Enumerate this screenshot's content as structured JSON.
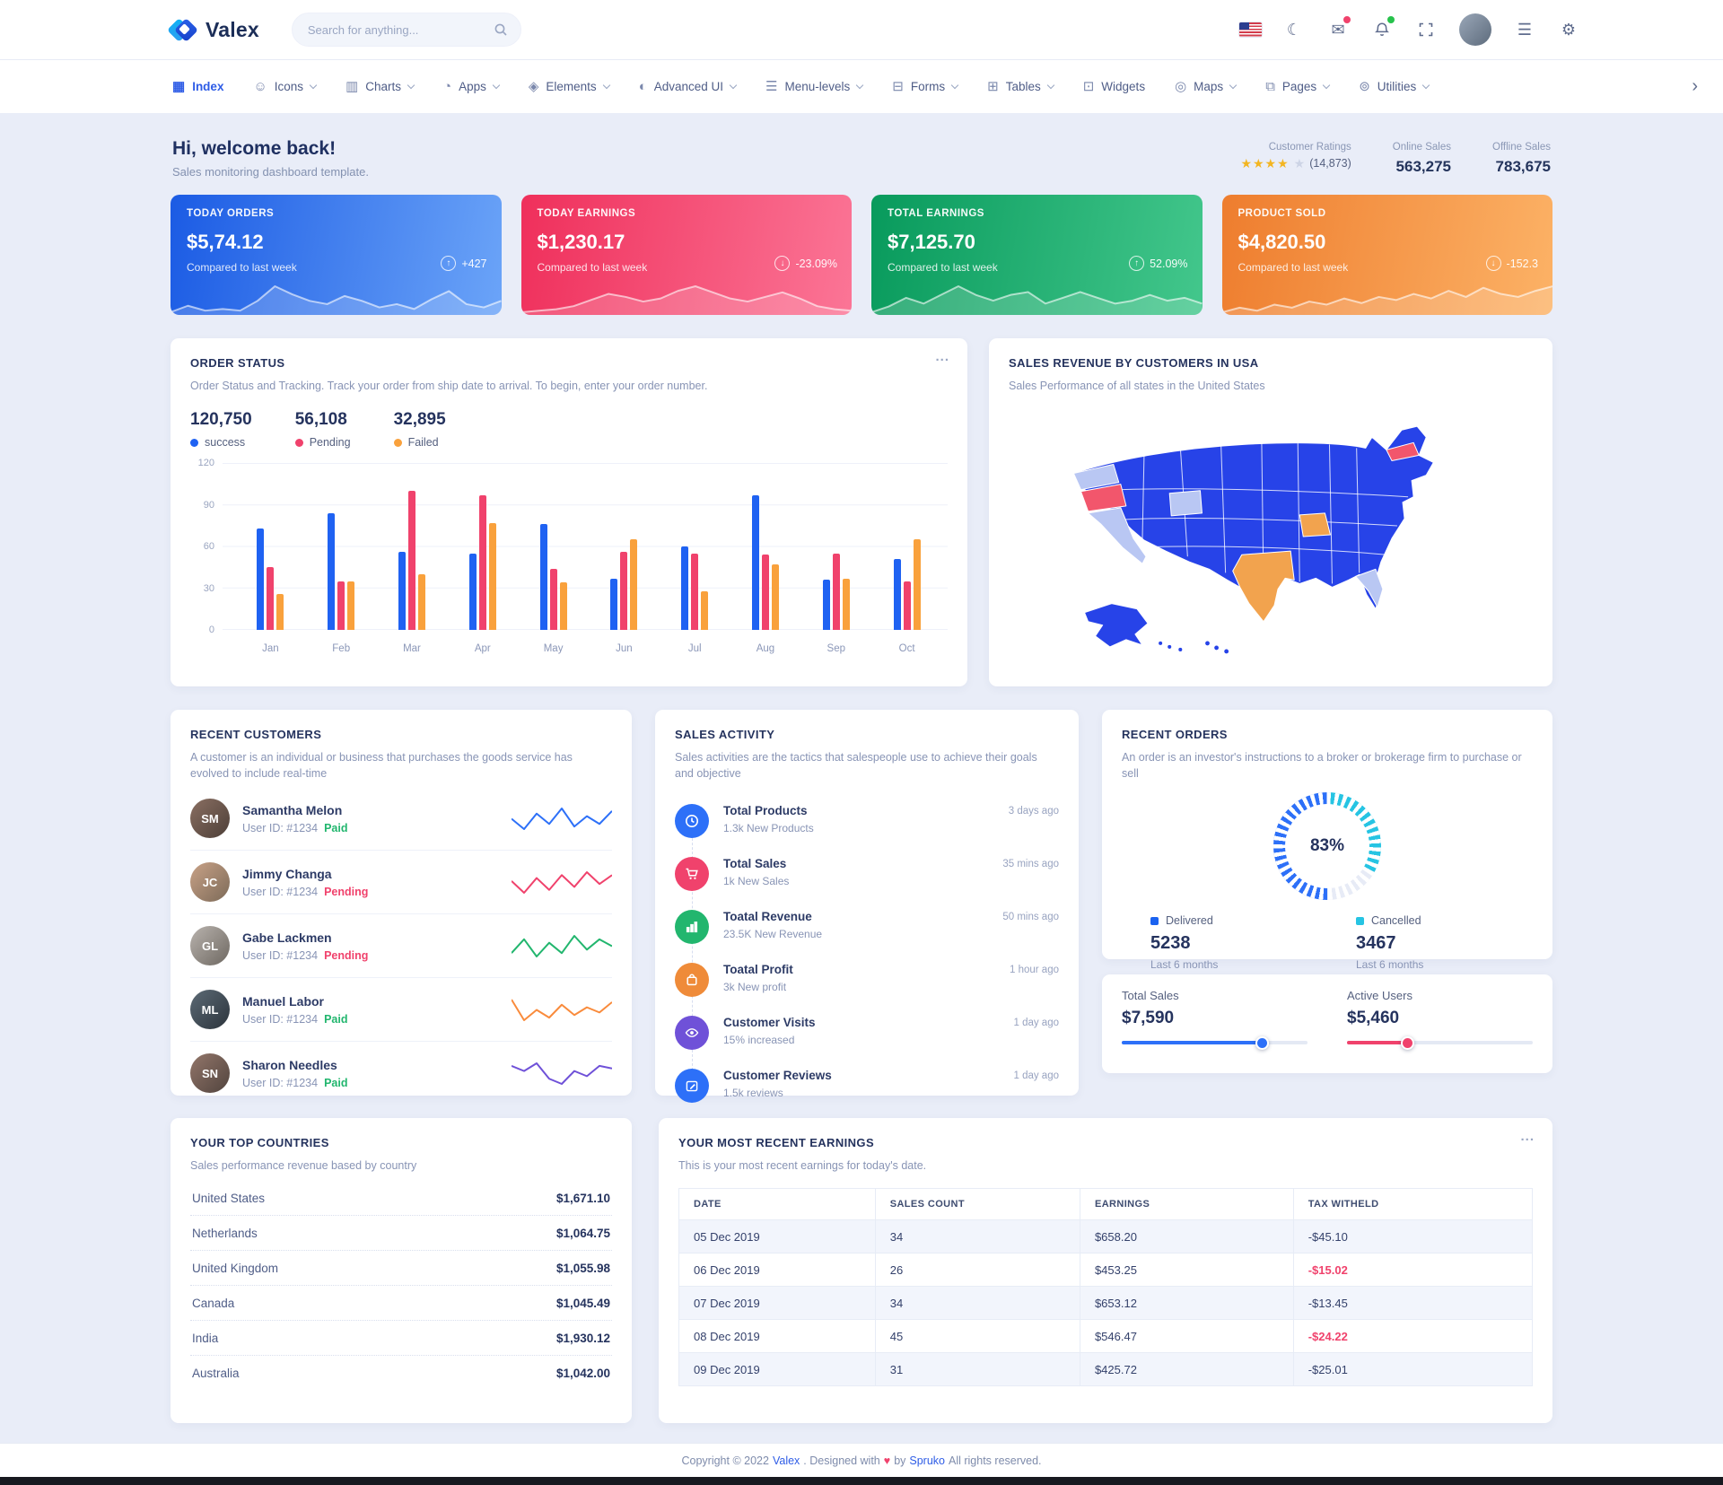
{
  "palette": {
    "primary": "#2e5ce6",
    "green": "#22b66e",
    "pink": "#f0426c",
    "gold": "#f3b521",
    "teal": "#26c4e3"
  },
  "topbar": {
    "brand": "Valex",
    "search_placeholder": "Search for anything..."
  },
  "nav": {
    "items": [
      {
        "label": "Index",
        "glyph": "▦"
      },
      {
        "label": "Icons",
        "glyph": "☺"
      },
      {
        "label": "Charts",
        "glyph": "▥"
      },
      {
        "label": "Apps",
        "glyph": "◔"
      },
      {
        "label": "Elements",
        "glyph": "◈"
      },
      {
        "label": "Advanced UI",
        "glyph": "◐"
      },
      {
        "label": "Menu-levels",
        "glyph": "☰"
      },
      {
        "label": "Forms",
        "glyph": "⊟"
      },
      {
        "label": "Tables",
        "glyph": "⊞"
      },
      {
        "label": "Widgets",
        "glyph": "⊡"
      },
      {
        "label": "Maps",
        "glyph": "◎"
      },
      {
        "label": "Pages",
        "glyph": "⧉"
      },
      {
        "label": "Utilities",
        "glyph": "⊚"
      }
    ],
    "more": "›",
    "glyphs": {
      "moon": "☾",
      "mail": "✉",
      "menu": "☰",
      "gear": "⚙"
    }
  },
  "welcome": {
    "title": "Hi, welcome back!",
    "subtitle": "Sales monitoring dashboard template.",
    "ratings": {
      "label": "Customer Ratings",
      "stars_full": "★★★★",
      "star_empty": "★",
      "count": "(14,873)"
    },
    "online": {
      "label": "Online Sales",
      "value": "563,275"
    },
    "offline": {
      "label": "Offline Sales",
      "value": "783,675"
    }
  },
  "stat_cards": [
    {
      "title": "TODAY ORDERS",
      "value": "$5,74.12",
      "note": "Compared to last week",
      "delta": "+427",
      "arrow": "↑",
      "trend": [
        20,
        28,
        22,
        24,
        22,
        34,
        52,
        42,
        34,
        30,
        40,
        34,
        26,
        30,
        24,
        36,
        46,
        30,
        26,
        34
      ]
    },
    {
      "title": "TODAY EARNINGS",
      "value": "$1,230.17",
      "note": "Compared to last week",
      "delta": "-23.09%",
      "arrow": "↓",
      "trend": [
        6,
        8,
        10,
        14,
        22,
        30,
        26,
        20,
        24,
        34,
        40,
        32,
        24,
        20,
        26,
        32,
        24,
        14,
        10,
        8
      ]
    },
    {
      "title": "TOTAL EARNINGS",
      "value": "$7,125.70",
      "note": "Compared to last week",
      "delta": "52.09%",
      "arrow": "↑",
      "trend": [
        16,
        20,
        26,
        22,
        28,
        34,
        28,
        24,
        28,
        30,
        22,
        26,
        30,
        26,
        22,
        24,
        28,
        24,
        26,
        22
      ]
    },
    {
      "title": "PRODUCT SOLD",
      "value": "$4,820.50",
      "note": "Compared to last week",
      "delta": "-152.3",
      "arrow": "↓",
      "trend": [
        10,
        16,
        12,
        20,
        16,
        24,
        20,
        28,
        22,
        30,
        26,
        34,
        28,
        38,
        30,
        42,
        34,
        30,
        38,
        44
      ]
    }
  ],
  "order_status": {
    "title": "ORDER STATUS",
    "menu": "...",
    "desc": "Order Status and Tracking. Track your order from ship date to arrival. To begin, enter your order number.",
    "legend": [
      {
        "value": "120,750",
        "label": "success"
      },
      {
        "value": "56,108",
        "label": "Pending"
      },
      {
        "value": "32,895",
        "label": "Failed"
      }
    ],
    "chart": {
      "type": "bar",
      "categories": [
        "Jan",
        "Feb",
        "Mar",
        "Apr",
        "May",
        "Jun",
        "Jul",
        "Aug",
        "Sep",
        "Oct"
      ],
      "series": [
        {
          "name": "success",
          "color": "#1f62f2",
          "values": [
            73,
            84,
            56,
            55,
            76,
            37,
            60,
            97,
            36,
            51
          ]
        },
        {
          "name": "Pending",
          "color": "#f0426c",
          "values": [
            45,
            35,
            100,
            97,
            44,
            56,
            55,
            54,
            55,
            35
          ]
        },
        {
          "name": "Failed",
          "color": "#f9a13c",
          "values": [
            26,
            35,
            40,
            77,
            34,
            65,
            28,
            47,
            37,
            65
          ]
        }
      ],
      "ylim": [
        0,
        120
      ],
      "yticks": [
        "120",
        "90",
        "60",
        "30",
        "0"
      ]
    }
  },
  "usa_map": {
    "title": "SALES REVENUE BY CUSTOMERS IN USA",
    "desc": "Sales Performance of all states in the United States",
    "colors": {
      "base": "#2743e8",
      "light": "#b9c7f3",
      "red": "#f2566c",
      "orange": "#f2a34e"
    }
  },
  "recent_customers": {
    "title": "RECENT CUSTOMERS",
    "desc": "A customer is an individual or business that purchases the goods service has evolved to include real-time",
    "customers": [
      {
        "name": "Samantha Melon",
        "id": "User ID: #1234",
        "status": "Paid",
        "spark_color": "#2d70f8",
        "trend": [
          12,
          8,
          14,
          10,
          16,
          9,
          13,
          10,
          15
        ]
      },
      {
        "name": "Jimmy Changa",
        "id": "User ID: #1234",
        "status": "Pending",
        "spark_color": "#f0426c",
        "trend": [
          14,
          10,
          15,
          11,
          16,
          12,
          17,
          13,
          16
        ]
      },
      {
        "name": "Gabe Lackmen",
        "id": "User ID: #1234",
        "status": "Pending",
        "spark_color": "#22b66e",
        "trend": [
          10,
          14,
          9,
          13,
          10,
          15,
          11,
          14,
          12
        ]
      },
      {
        "name": "Manuel Labor",
        "id": "User ID: #1234",
        "status": "Paid",
        "spark_color": "#f98b3c",
        "trend": [
          16,
          8,
          12,
          9,
          14,
          10,
          13,
          11,
          15
        ]
      },
      {
        "name": "Sharon Needles",
        "id": "User ID: #1234",
        "status": "Paid",
        "spark_color": "#6f51d8",
        "trend": [
          14,
          12,
          15,
          9,
          7,
          12,
          10,
          14,
          13
        ]
      }
    ]
  },
  "sales_activity": {
    "title": "SALES ACTIVITY",
    "desc": "Sales activities are the tactics that salespeople use to achieve their goals and objective",
    "items": [
      {
        "title": "Total Products",
        "sub": "1.3k New Products",
        "time": "3 days ago",
        "color": "#2d70f8"
      },
      {
        "title": "Total Sales",
        "sub": "1k New Sales",
        "time": "35 mins ago",
        "color": "#f0426c"
      },
      {
        "title": "Toatal Revenue",
        "sub": "23.5K New Revenue",
        "time": "50 mins ago",
        "color": "#22b66e"
      },
      {
        "title": "Toatal Profit",
        "sub": "3k New profit",
        "time": "1 hour ago",
        "color": "#ef8b39"
      },
      {
        "title": "Customer Visits",
        "sub": "15% increased",
        "time": "1 day ago",
        "color": "#6f51d8"
      },
      {
        "title": "Customer Reviews",
        "sub": "1.5k reviews",
        "time": "1 day ago",
        "color": "#2d70f8"
      }
    ]
  },
  "recent_orders": {
    "title": "RECENT ORDERS",
    "desc": "An order is an investor's instructions to a broker or brokerage firm to purchase or sell",
    "gauge": {
      "pct_label": "83%",
      "start_deg": 180,
      "segments": [
        {
          "color": "#2d70f8",
          "pct": 50
        },
        {
          "color": "#26c4e3",
          "pct": 33
        },
        {
          "color": "#e7ebf6",
          "pct": 17
        }
      ]
    },
    "legend": [
      {
        "label": "Delivered",
        "value": "5238",
        "period": "Last 6 months",
        "color": "#1b62f0"
      },
      {
        "label": "Cancelled",
        "value": "3467",
        "period": "Last 6 months",
        "color": "#26c4e3"
      }
    ]
  },
  "sales_overview": {
    "items": [
      {
        "label": "Total Sales",
        "value": "$7,590",
        "pct": 76,
        "color": "#2d70f8"
      },
      {
        "label": "Active Users",
        "value": "$5,460",
        "pct": 33,
        "color": "#f0426c"
      }
    ]
  },
  "top_countries": {
    "title": "YOUR TOP COUNTRIES",
    "desc": "Sales performance revenue based by country",
    "rows": [
      {
        "name": "United States",
        "value": "$1,671.10"
      },
      {
        "name": "Netherlands",
        "value": "$1,064.75"
      },
      {
        "name": "United Kingdom",
        "value": "$1,055.98"
      },
      {
        "name": "Canada",
        "value": "$1,045.49"
      },
      {
        "name": "India",
        "value": "$1,930.12"
      },
      {
        "name": "Australia",
        "value": "$1,042.00"
      }
    ]
  },
  "recent_earnings": {
    "title": "YOUR MOST RECENT EARNINGS",
    "desc": "This is your most recent earnings for today's date.",
    "menu": "...",
    "columns": [
      "DATE",
      "SALES COUNT",
      "EARNINGS",
      "TAX WITHELD"
    ],
    "rows": [
      {
        "date": "05 Dec 2019",
        "count": "34",
        "earnings": "$658.20",
        "tax": "-$45.10"
      },
      {
        "date": "06 Dec 2019",
        "count": "26",
        "earnings": "$453.25",
        "tax": "-$15.02"
      },
      {
        "date": "07 Dec 2019",
        "count": "34",
        "earnings": "$653.12",
        "tax": "-$13.45"
      },
      {
        "date": "08 Dec 2019",
        "count": "45",
        "earnings": "$546.47",
        "tax": "-$24.22"
      },
      {
        "date": "09 Dec 2019",
        "count": "31",
        "earnings": "$425.72",
        "tax": "-$25.01"
      }
    ]
  },
  "footer": {
    "pre": "Copyright © 2022",
    "brand": "Valex",
    "mid": ". Designed with",
    "heart": "♥",
    "by": "by",
    "brand2": "Spruko",
    "post": "All rights reserved."
  }
}
